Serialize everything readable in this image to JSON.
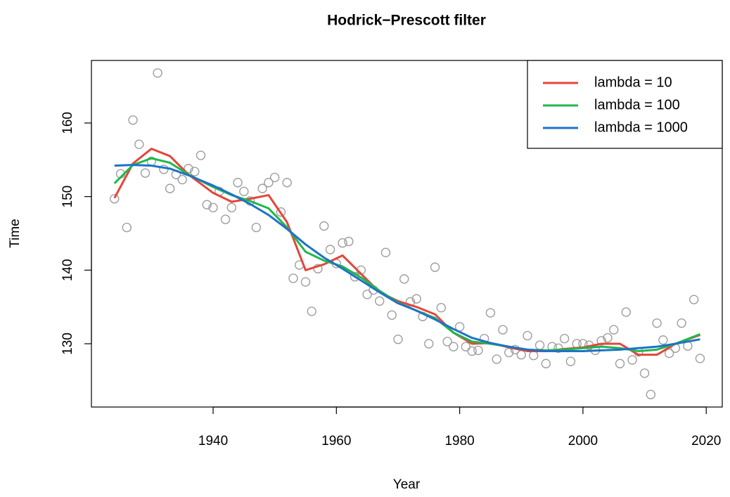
{
  "chart_data": {
    "type": "scatter",
    "title": "Hodrick−Prescott filter",
    "xlabel": "Year",
    "ylabel": "Time",
    "x": [
      1924,
      1925,
      1926,
      1927,
      1928,
      1929,
      1930,
      1931,
      1932,
      1933,
      1934,
      1935,
      1936,
      1937,
      1938,
      1939,
      1940,
      1941,
      1942,
      1943,
      1944,
      1945,
      1946,
      1947,
      1948,
      1949,
      1950,
      1951,
      1952,
      1953,
      1954,
      1955,
      1956,
      1957,
      1958,
      1959,
      1960,
      1961,
      1962,
      1963,
      1964,
      1965,
      1966,
      1967,
      1968,
      1969,
      1970,
      1971,
      1972,
      1973,
      1974,
      1975,
      1976,
      1977,
      1978,
      1979,
      1980,
      1981,
      1982,
      1983,
      1984,
      1985,
      1986,
      1987,
      1988,
      1989,
      1990,
      1991,
      1992,
      1993,
      1994,
      1995,
      1996,
      1997,
      1998,
      1999,
      2000,
      2001,
      2002,
      2003,
      2004,
      2005,
      2006,
      2007,
      2008,
      2009,
      2010,
      2011,
      2012,
      2013,
      2014,
      2015,
      2016,
      2017,
      2018,
      2019
    ],
    "values": [
      149.7,
      153.1,
      145.8,
      160.4,
      157.1,
      153.2,
      154.8,
      166.8,
      153.7,
      151.1,
      153.0,
      152.3,
      153.8,
      153.4,
      155.6,
      148.9,
      148.5,
      150.7,
      146.9,
      148.5,
      151.9,
      150.7,
      149.4,
      145.8,
      151.1,
      151.9,
      152.6,
      147.9,
      151.9,
      138.9,
      140.7,
      138.4,
      134.4,
      140.2,
      146.0,
      142.8,
      140.9,
      143.7,
      143.9,
      139.1,
      140.0,
      136.7,
      137.3,
      135.8,
      142.4,
      133.9,
      130.6,
      138.8,
      135.7,
      136.1,
      133.7,
      130.0,
      140.4,
      134.9,
      130.3,
      129.6,
      132.3,
      129.6,
      129.0,
      129.1,
      130.7,
      134.2,
      127.9,
      131.9,
      128.8,
      129.2,
      128.5,
      131.1,
      128.4,
      129.8,
      127.3,
      129.6,
      129.4,
      130.7,
      127.6,
      130.0,
      130.0,
      129.8,
      129.1,
      130.4,
      130.8,
      131.9,
      127.3,
      134.3,
      127.8,
      128.9,
      126.0,
      123.1,
      132.8,
      130.5,
      128.7,
      129.4,
      132.8,
      129.7,
      136.0,
      128.0
    ],
    "point_color": "#9e9e9e",
    "line_x": [
      1924,
      1927,
      1930,
      1933,
      1936,
      1940,
      1943,
      1946,
      1949,
      1952,
      1955,
      1958,
      1961,
      1964,
      1967,
      1970,
      1973,
      1976,
      1979,
      1982,
      1985,
      1988,
      1991,
      1994,
      1997,
      2000,
      2003,
      2006,
      2009,
      2012,
      2015,
      2019
    ],
    "series": [
      {
        "name": "lambda = 10",
        "color": "#e5453b",
        "values": [
          149.8,
          154.5,
          156.5,
          155.5,
          153.0,
          150.5,
          149.3,
          149.7,
          150.2,
          146.5,
          140.0,
          140.8,
          142.0,
          139.5,
          137.0,
          135.8,
          135.0,
          134.0,
          131.5,
          130.0,
          130.1,
          129.5,
          129.0,
          129.0,
          129.3,
          129.5,
          130.0,
          130.0,
          128.5,
          128.5,
          130.0,
          131.2
        ]
      },
      {
        "name": "lambda = 100",
        "color": "#1fb84a",
        "values": [
          151.8,
          154.3,
          155.2,
          154.6,
          153.0,
          151.3,
          150.2,
          149.4,
          148.4,
          145.8,
          142.5,
          141.3,
          140.5,
          139.0,
          137.2,
          135.6,
          134.5,
          133.5,
          131.5,
          130.3,
          130.0,
          129.6,
          129.2,
          129.1,
          129.2,
          129.4,
          129.6,
          129.4,
          129.0,
          129.2,
          130.0,
          131.3
        ]
      },
      {
        "name": "lambda = 1000",
        "color": "#1e72c8",
        "values": [
          154.2,
          154.3,
          154.2,
          153.8,
          152.9,
          151.5,
          150.3,
          149.0,
          147.5,
          145.6,
          143.5,
          141.7,
          140.2,
          138.6,
          137.0,
          135.5,
          134.5,
          133.3,
          132.0,
          130.8,
          130.1,
          129.6,
          129.2,
          129.0,
          129.0,
          129.0,
          129.1,
          129.2,
          129.4,
          129.6,
          130.0,
          130.6
        ]
      }
    ],
    "xlim": [
      1920.26,
      2022.6
    ],
    "ylim": [
      121.4,
      168.5
    ],
    "xticks": [
      1940,
      1960,
      1980,
      2000,
      2020
    ],
    "yticks": [
      130,
      140,
      150,
      160
    ],
    "legend": "top-right"
  }
}
